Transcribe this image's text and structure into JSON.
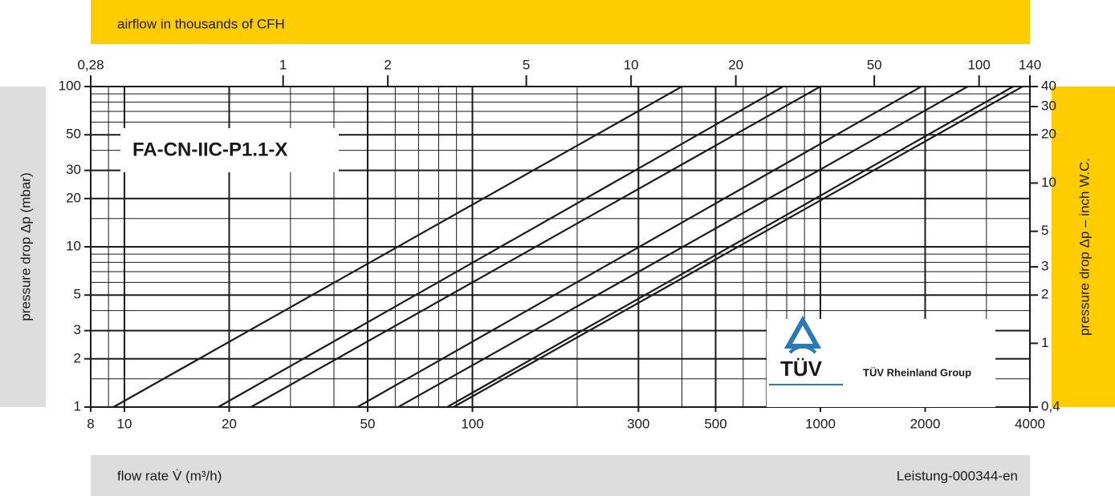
{
  "chart_data": {
    "type": "line",
    "x2_label": "airflow in thousands of CFH",
    "x_label": "flow rate V̇ (m³/h)",
    "y_label": "pressure drop Δp (mbar)",
    "y2_label": "pressure drop Δp – inch W.C.",
    "model": "FA-CN-IIC-P1.1-X",
    "logo_text": "TÜV",
    "logo_caption": "TÜV Rheinland Group",
    "code": "Leistung-000344-en",
    "log_scale": true,
    "grid": true,
    "xlim": [
      8,
      4000
    ],
    "xticks": [
      8,
      10,
      20,
      50,
      100,
      300,
      500,
      1000,
      2000,
      4000
    ],
    "xgrid": [
      9,
      10,
      20,
      30,
      40,
      50,
      60,
      70,
      80,
      90,
      100,
      200,
      300,
      400,
      500,
      600,
      700,
      800,
      900,
      1000,
      2000,
      3000
    ],
    "x2lim": [
      0.28,
      140
    ],
    "x2ticks": [
      {
        "value": 0.28,
        "label": "0,28"
      },
      1,
      2,
      5,
      10,
      20,
      50,
      100,
      140
    ],
    "ylim": [
      1,
      100
    ],
    "yticks": [
      1,
      2,
      3,
      5,
      10,
      20,
      30,
      50,
      100
    ],
    "ygrid": [
      1.5,
      2,
      3,
      4,
      5,
      6,
      7,
      8,
      9,
      10,
      15,
      20,
      30,
      40,
      50,
      60,
      70,
      80,
      90
    ],
    "y2lim": [
      0.4,
      40
    ],
    "y2ticks": [
      {
        "value": 0.4,
        "label": "0,4"
      },
      1,
      2,
      3,
      5,
      10,
      20,
      30,
      40
    ],
    "series": [
      {
        "color": "#1a1a1a",
        "x": [
          9.3,
          400
        ],
        "values": [
          1,
          100
        ]
      },
      {
        "color": "#1a1a1a",
        "x": [
          18.6,
          780
        ],
        "values": [
          1,
          100
        ]
      },
      {
        "color": "#1a1a1a",
        "x": [
          23.1,
          1000
        ],
        "values": [
          1,
          100
        ]
      },
      {
        "color": "#1a1a1a",
        "x": [
          46.7,
          1950
        ],
        "values": [
          1,
          100
        ]
      },
      {
        "color": "#1a1a1a",
        "x": [
          61.2,
          2650
        ],
        "values": [
          1,
          100
        ]
      },
      {
        "color": "#1a1a1a",
        "x": [
          84.6,
          3580
        ],
        "values": [
          1,
          100
        ]
      },
      {
        "color": "#1a1a1a",
        "x": [
          88.2,
          3810
        ],
        "values": [
          1,
          100
        ]
      }
    ]
  }
}
